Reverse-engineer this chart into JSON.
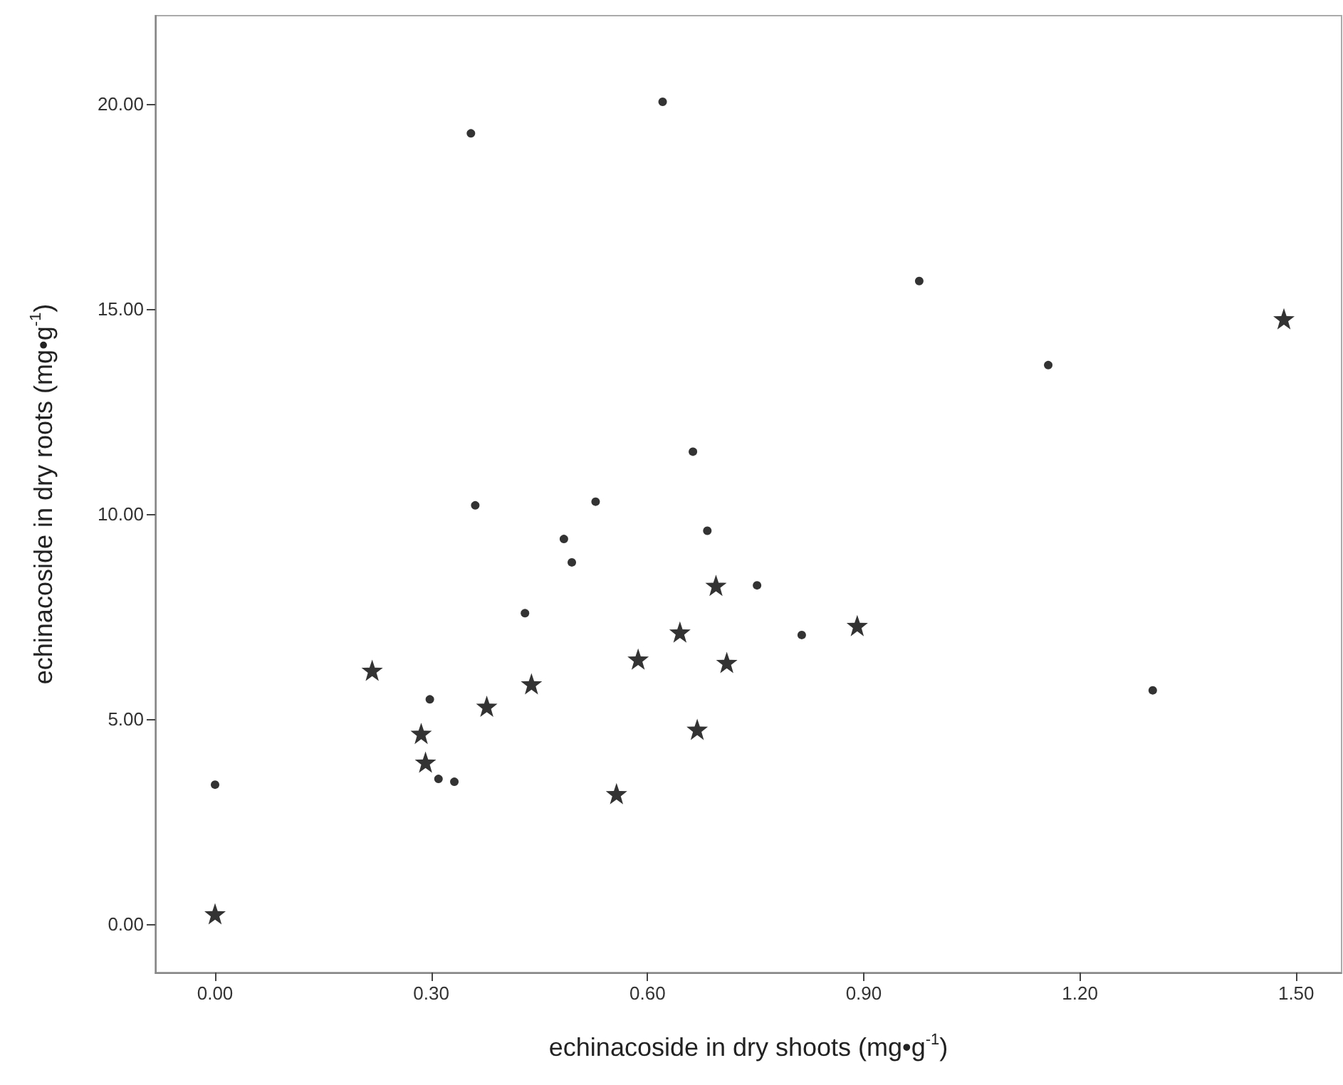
{
  "chart_data": {
    "type": "scatter",
    "xlabel": "echinacoside in dry shoots (mg•g$^{-1}$)",
    "ylabel": "echinacoside in dry roots (mg•g$^{-1}$)",
    "xlim": [
      -0.083,
      1.563
    ],
    "ylim": [
      -1.18,
      22.15
    ],
    "xticks": [
      {
        "value": 0,
        "label": "0.00"
      },
      {
        "value": 0.3,
        "label": "0.30"
      },
      {
        "value": 0.6,
        "label": "0.60"
      },
      {
        "value": 0.9,
        "label": "0.90"
      },
      {
        "value": 1.2,
        "label": "1.20"
      },
      {
        "value": 1.5,
        "label": "1.50"
      }
    ],
    "yticks": [
      {
        "value": 0,
        "label": "0.00"
      },
      {
        "value": 5,
        "label": "5.00"
      },
      {
        "value": 10,
        "label": "10.00"
      },
      {
        "value": 15,
        "label": "15.00"
      },
      {
        "value": 20,
        "label": "20.00"
      }
    ],
    "grid": false,
    "series": [
      {
        "color": "#000000",
        "marker": "circle",
        "x": [
          0.355,
          0.621,
          0.663,
          0.977,
          1.156,
          0.361,
          0.528,
          0.484,
          0.495,
          0.683,
          0.43,
          0.298,
          0.31,
          0.332,
          0.0,
          0.752,
          0.814,
          1.301
        ],
        "values": [
          19.28,
          20.05,
          11.52,
          15.68,
          13.63,
          10.21,
          10.3,
          9.39,
          8.82,
          9.59,
          7.58,
          5.48,
          3.54,
          3.47,
          3.4,
          8.26,
          7.05,
          5.7
        ]
      },
      {
        "color": "#000000",
        "marker": "star",
        "x": [
          1.483,
          0.695,
          0.645,
          0.587,
          0.71,
          0.218,
          0.439,
          0.377,
          0.286,
          0.669,
          0.292,
          0.557,
          0.0,
          0.891
        ],
        "values": [
          14.76,
          8.26,
          7.12,
          6.46,
          6.38,
          6.19,
          5.86,
          5.31,
          4.65,
          4.75,
          3.95,
          3.18,
          0.25,
          7.28
        ]
      }
    ]
  }
}
